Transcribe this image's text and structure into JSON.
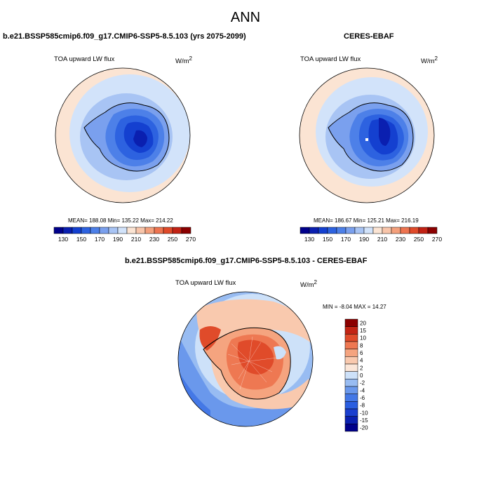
{
  "figure": {
    "title": "ANN",
    "panels": [
      {
        "id": "model",
        "title": "b.e21.BSSP585cmip6.f09_g17.CMIP6-SSP5-8.5.103 (yrs 2075-2099)",
        "variable": "TOA upward LW flux",
        "units_base": "W/m",
        "units_exp": "2",
        "stats": "MEAN= 188.08  Min= 135.22  Max= 214.22"
      },
      {
        "id": "obs",
        "title": "CERES-EBAF",
        "variable": "TOA upward LW flux",
        "units_base": "W/m",
        "units_exp": "2",
        "stats": "MEAN= 186.67  Min= 125.21  Max= 216.19"
      }
    ],
    "diff_panel": {
      "title": "b.e21.BSSP585cmip6.f09_g17.CMIP6-SSP5-8.5.103 - CERES-EBAF",
      "variable": "TOA upward LW flux",
      "units_base": "W/m",
      "units_exp": "2",
      "stats": "MIN =  -8.04 MAX =  14.27"
    }
  },
  "colorbars": {
    "main": {
      "colors": [
        "#00008b",
        "#0a1fb0",
        "#1440d0",
        "#2d62e0",
        "#4d80e8",
        "#7aa0ee",
        "#a8c4f4",
        "#d2e3fa",
        "#fbe4d3",
        "#f8c5aa",
        "#f4a07c",
        "#ee7450",
        "#e04a2a",
        "#c22214",
        "#8b0000"
      ],
      "tick_labels": [
        "130",
        "150",
        "170",
        "190",
        "210",
        "230",
        "250",
        "270"
      ]
    },
    "diff": {
      "colors": [
        "#00008b",
        "#0a20b0",
        "#1a3fcf",
        "#2a5ee0",
        "#4478e6",
        "#6a98ec",
        "#98bcf2",
        "#cde1f9",
        "#fbe6d8",
        "#f9c9ae",
        "#f5a47f",
        "#ee7852",
        "#e04b2a",
        "#c32414",
        "#8b0000"
      ],
      "tick_labels": [
        "-20",
        "-15",
        "-10",
        "-8",
        "-6",
        "-4",
        "-2",
        "0",
        "2",
        "4",
        "6",
        "8",
        "10",
        "15",
        "20"
      ]
    }
  },
  "map_colors": {
    "ocean_warm": "#fbe4d3",
    "ocean_light": "#d2e3fa",
    "ocean_mid": "#a8c4f4",
    "ice_1": "#7aa0ee",
    "ice_2": "#4d80e8",
    "ice_3": "#2d62e0",
    "ice_4": "#1440d0",
    "ice_5": "#0a1fb0",
    "diff_red_1": "#f9c9ae",
    "diff_red_2": "#f5a47f",
    "diff_red_3": "#ee7852",
    "diff_red_4": "#e04b2a",
    "diff_blue_1": "#cde1f9",
    "diff_blue_2": "#98bcf2",
    "diff_blue_3": "#6a98ec",
    "diff_blue_4": "#4478e6"
  }
}
